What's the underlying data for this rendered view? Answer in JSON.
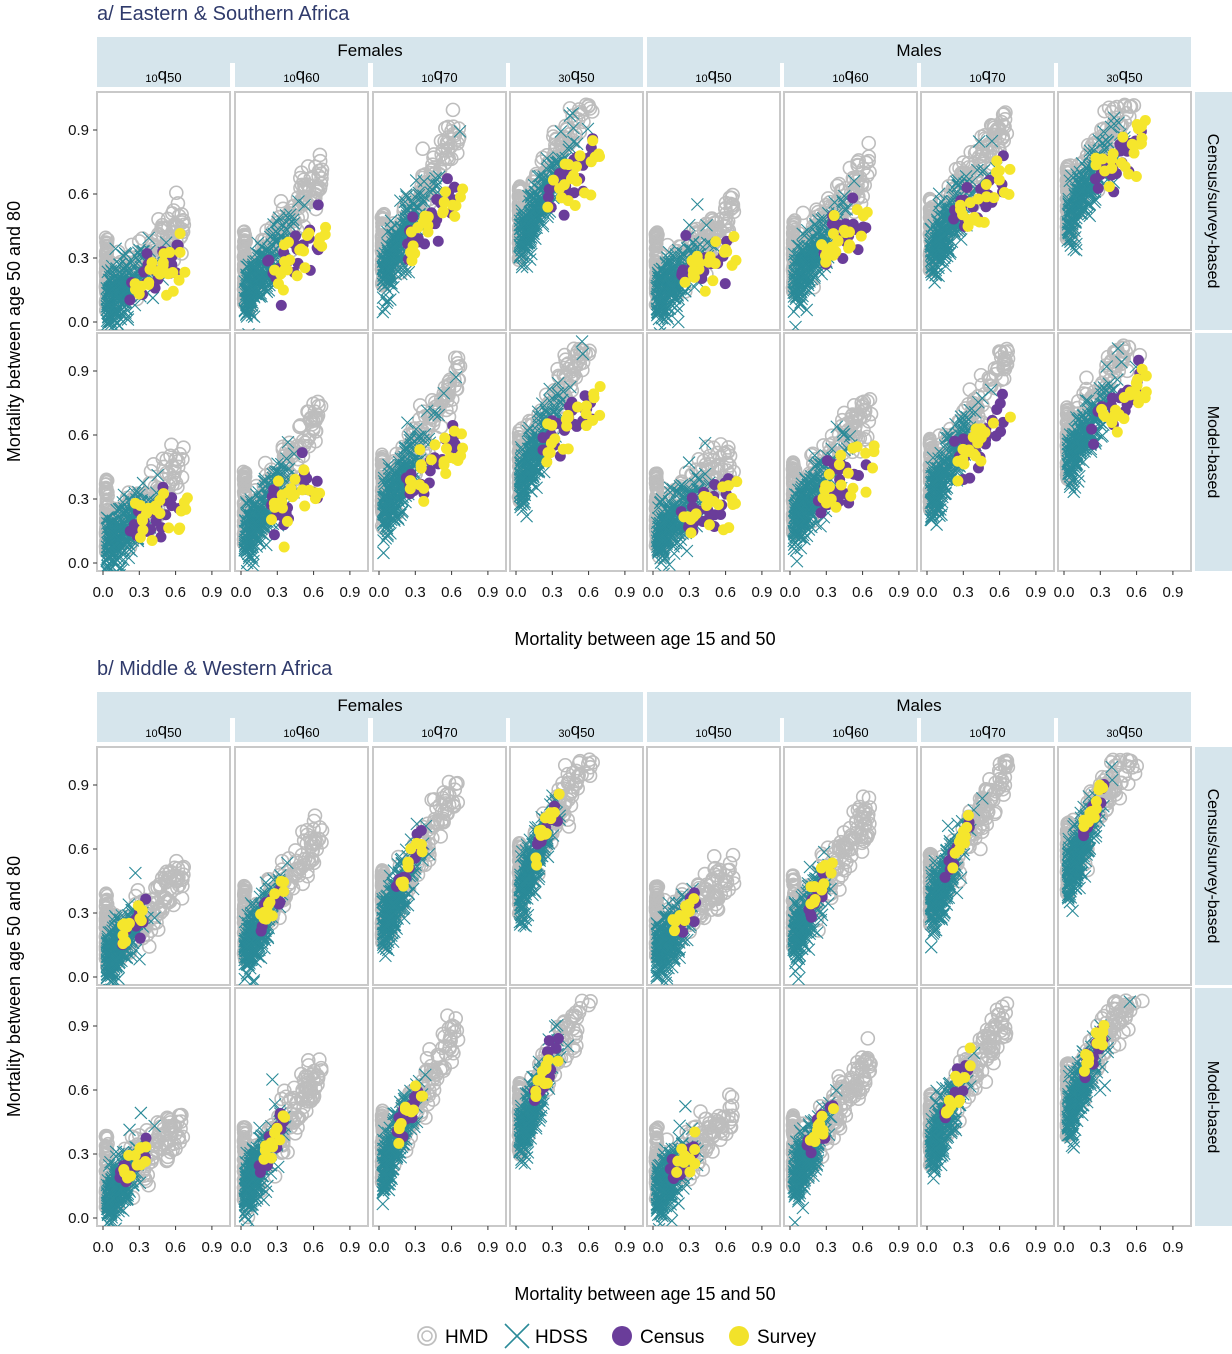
{
  "chart_data": [
    {
      "type": "scatter",
      "title": "a/ Eastern & Southern Africa",
      "xlabel": "Mortality between age 15 and 50",
      "ylabel": "Mortality between age 50 and 80",
      "sexes": [
        "Females",
        "Males"
      ],
      "measures": [
        {
          "base": "10",
          "q": "q",
          "sub": "50"
        },
        {
          "base": "10",
          "q": "q",
          "sub": "60"
        },
        {
          "base": "10",
          "q": "q",
          "sub": "70"
        },
        {
          "base": "30",
          "q": "q",
          "sub": "50"
        }
      ],
      "rows": [
        "Census/survey-based",
        "Model-based"
      ],
      "xlim": [
        0,
        1.0
      ],
      "ylim": [
        0,
        1.05
      ],
      "xticks": [
        "0.0",
        "0.3",
        "0.6",
        "0.9"
      ],
      "yticks": [
        "0.0",
        "0.3",
        "0.6",
        "0.9"
      ],
      "census_survey_scale": [
        1.0,
        1.0
      ]
    },
    {
      "type": "scatter",
      "title": "b/ Middle & Western Africa",
      "xlabel": "Mortality between age 15 and 50",
      "ylabel": "Mortality between age 50 and 80",
      "sexes": [
        "Females",
        "Males"
      ],
      "measures": [
        {
          "base": "10",
          "q": "q",
          "sub": "50"
        },
        {
          "base": "10",
          "q": "q",
          "sub": "60"
        },
        {
          "base": "10",
          "q": "q",
          "sub": "70"
        },
        {
          "base": "30",
          "q": "q",
          "sub": "50"
        }
      ],
      "rows": [
        "Census/survey-based",
        "Model-based"
      ],
      "xlim": [
        0,
        1.0
      ],
      "ylim": [
        0,
        1.05
      ],
      "xticks": [
        "0.0",
        "0.3",
        "0.6",
        "0.9"
      ],
      "yticks": [
        "0.0",
        "0.3",
        "0.6",
        "0.9"
      ],
      "census_survey_scale": [
        0.5,
        0.6
      ]
    }
  ],
  "legend": [
    {
      "label": "HMD",
      "shape": "open-circle",
      "color": "#bfbfbf"
    },
    {
      "label": "HDSS",
      "shape": "cross",
      "color": "#2a8a98"
    },
    {
      "label": "Census",
      "shape": "filled-circle",
      "color": "#6a3d9a"
    },
    {
      "label": "Survey",
      "shape": "filled-circle",
      "color": "#f2e22a"
    }
  ],
  "colors": {
    "hmd": "#bdbdbd",
    "hdss": "#2a8a98",
    "census": "#6a3d9a",
    "survey": "#f5e62c",
    "strip": "#d6e5ec",
    "panel_border": "#c9c9c9",
    "title": "#2f3a6b"
  }
}
